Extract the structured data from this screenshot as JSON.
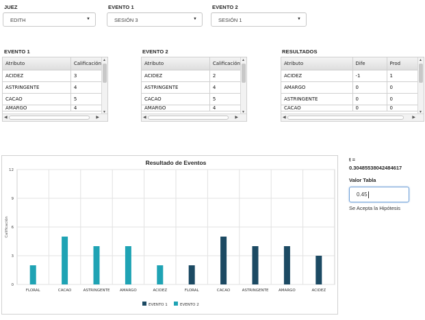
{
  "filters": {
    "judge": {
      "label": "JUEZ",
      "value": "EDITH"
    },
    "event1": {
      "label": "EVENTO 1",
      "value": "SESIÓN 3"
    },
    "event2": {
      "label": "EVENTO 2",
      "value": "SESIÓN 1"
    }
  },
  "tables": {
    "event1": {
      "title": "EVENTO 1",
      "headers": [
        "Atributo",
        "Calificación"
      ],
      "rows": [
        [
          "ACIDEZ",
          "3"
        ],
        [
          "ASTRINGENTE",
          "4"
        ],
        [
          "CACAO",
          "5"
        ],
        [
          "AMARGO",
          "4"
        ]
      ]
    },
    "event2": {
      "title": "EVENTO 2",
      "headers": [
        "Atributo",
        "Calificación"
      ],
      "rows": [
        [
          "ACIDEZ",
          "2"
        ],
        [
          "ASTRINGENTE",
          "4"
        ],
        [
          "CACAO",
          "5"
        ],
        [
          "AMARGO",
          "4"
        ]
      ]
    },
    "results": {
      "title": "RESULTADOS",
      "headers": [
        "Atributo",
        "Dife",
        "Prod"
      ],
      "rows": [
        [
          "ACIDEZ",
          "-1",
          "1"
        ],
        [
          "AMARGO",
          "0",
          "0"
        ],
        [
          "ASTRINGENTE",
          "0",
          "0"
        ],
        [
          "CACAO",
          "0",
          "0"
        ]
      ]
    }
  },
  "stats": {
    "t_label": "t =",
    "t_value": "0.30485538042484617",
    "valor_tabla_label": "Valor Tabla",
    "valor_tabla_value": "0.45",
    "hypothesis_text": "Se Acepta la Hipótesis"
  },
  "chart_data": {
    "type": "bar",
    "title": "Resultado de Eventos",
    "ylabel": "Calificación",
    "xlabel": "",
    "ylim": [
      0,
      12
    ],
    "yticks": [
      0,
      3,
      6,
      9,
      12
    ],
    "grid": true,
    "legend_position": "bottom",
    "categories": [
      "FLORAL",
      "CACAO",
      "ASTRINGENTE",
      "AMARGO",
      "ACIDEZ",
      "FLORAL",
      "CACAO",
      "ASTRINGENTE",
      "AMARGO",
      "ACIDEZ"
    ],
    "series": [
      {
        "name": "EVENTO 1",
        "color": "#1c4a63",
        "values": [
          null,
          null,
          null,
          null,
          null,
          2,
          5,
          4,
          4,
          3
        ]
      },
      {
        "name": "EVENTO 2",
        "color": "#1fa3b4",
        "values": [
          2,
          5,
          4,
          4,
          2,
          null,
          null,
          null,
          null,
          null
        ]
      }
    ]
  }
}
